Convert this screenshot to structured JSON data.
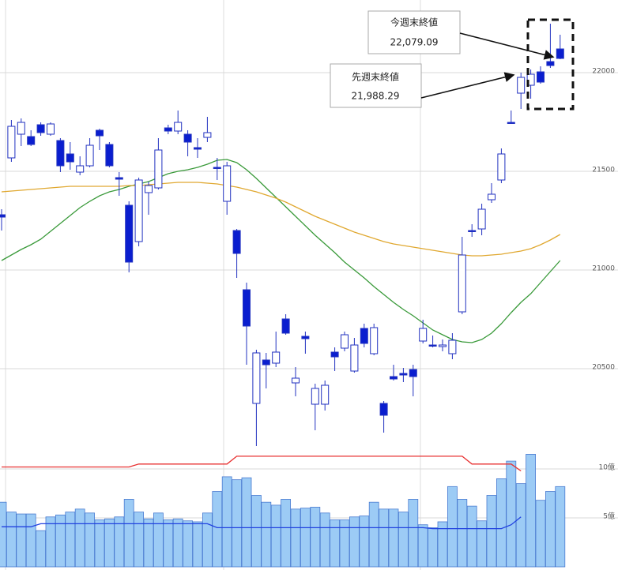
{
  "chart_data": {
    "type": "candlestick",
    "open": [
      21280,
      21568,
      21688,
      21676,
      21736,
      21688,
      21656,
      21588,
      21496,
      21528,
      21708,
      21636,
      21468,
      21328,
      21144,
      21392,
      21416,
      21720,
      21704,
      21688,
      21620,
      21672,
      21520,
      21348,
      21200,
      20900,
      20324,
      20544,
      20528,
      20752,
      20428,
      20664,
      20320,
      20320,
      20584,
      20604,
      20488,
      20704,
      20576,
      20324,
      20460,
      20476,
      20496,
      20640,
      20620,
      20612,
      20576,
      20788,
      21200,
      21208,
      21356,
      21456,
      21748,
      21896,
      21936,
      22004,
      22056,
      22120
    ],
    "high": [
      21308,
      21760,
      21768,
      21708,
      21748,
      21748,
      21668,
      21648,
      21576,
      21668,
      21716,
      21648,
      21496,
      21348,
      21468,
      21448,
      21668,
      21736,
      21808,
      21708,
      21668,
      21776,
      21568,
      21548,
      21208,
      20936,
      20596,
      20580,
      20688,
      20776,
      20508,
      20688,
      20424,
      20440,
      20608,
      20688,
      20656,
      20728,
      20728,
      20336,
      20520,
      20504,
      20520,
      20748,
      20668,
      20648,
      20680,
      21168,
      21232,
      21336,
      21440,
      21616,
      21808,
      22000,
      22016,
      22032,
      22248,
      22192
    ],
    "low": [
      21200,
      21548,
      21628,
      21628,
      21680,
      21680,
      21496,
      21508,
      21480,
      21520,
      21608,
      21520,
      21376,
      20988,
      21120,
      21280,
      21408,
      21688,
      21688,
      21576,
      21568,
      21648,
      21456,
      21280,
      20960,
      20520,
      20108,
      20400,
      20508,
      20672,
      20360,
      20576,
      20188,
      20288,
      20488,
      20588,
      20480,
      20608,
      20568,
      20176,
      20440,
      20432,
      20360,
      20628,
      20608,
      20588,
      20548,
      20776,
      21168,
      21176,
      21340,
      21440,
      21740,
      21816,
      21868,
      21944,
      22024,
      22068
    ],
    "close": [
      21268,
      21728,
      21748,
      21636,
      21696,
      21740,
      21528,
      21548,
      21528,
      21632,
      21680,
      21528,
      21460,
      21040,
      21456,
      21428,
      21608,
      21704,
      21748,
      21648,
      21612,
      21696,
      21516,
      21528,
      21084,
      20716,
      20580,
      20520,
      20584,
      20680,
      20452,
      20652,
      20400,
      20416,
      20560,
      20672,
      20620,
      20628,
      20708,
      20264,
      20448,
      20468,
      20460,
      20704,
      20616,
      20620,
      20644,
      21076,
      21196,
      21308,
      21384,
      21588,
      21744,
      21976,
      21992,
      21952,
      22036,
      22072
    ],
    "up_color": "#ffffff",
    "down_color": "#0a1ecf",
    "ylim": [
      20000,
      22368
    ],
    "yticks": [
      22000,
      21500,
      21000,
      20500
    ],
    "grid": true,
    "series": [
      {
        "color": "#3a9a3a",
        "values": [
          21048,
          21076,
          21104,
          21128,
          21156,
          21196,
          21236,
          21276,
          21316,
          21348,
          21376,
          21396,
          21408,
          21424,
          21436,
          21448,
          21468,
          21488,
          21500,
          21508,
          21520,
          21536,
          21556,
          21560,
          21544,
          21508,
          21464,
          21416,
          21368,
          21320,
          21272,
          21224,
          21176,
          21132,
          21088,
          21040,
          21000,
          20960,
          20916,
          20876,
          20836,
          20800,
          20768,
          20732,
          20696,
          20672,
          20648,
          20636,
          20632,
          20648,
          20680,
          20728,
          20784,
          20836,
          20880,
          20936,
          20992,
          21048
        ]
      },
      {
        "color": "#e0a830",
        "values": [
          21396,
          21400,
          21404,
          21408,
          21412,
          21416,
          21420,
          21424,
          21424,
          21424,
          21424,
          21424,
          21424,
          21428,
          21428,
          21432,
          21436,
          21440,
          21444,
          21444,
          21444,
          21440,
          21436,
          21428,
          21420,
          21408,
          21396,
          21380,
          21364,
          21344,
          21320,
          21296,
          21272,
          21252,
          21232,
          21212,
          21192,
          21176,
          21160,
          21144,
          21132,
          21124,
          21116,
          21108,
          21100,
          21092,
          21084,
          21076,
          21072,
          21072,
          21076,
          21080,
          21088,
          21096,
          21108,
          21128,
          21152,
          21180
        ]
      }
    ],
    "volume": {
      "color": "#9ccbf5",
      "values": [
        6.6,
        5.6,
        5.4,
        5.4,
        3.7,
        5.1,
        5.3,
        5.6,
        5.9,
        5.5,
        4.8,
        4.9,
        5.1,
        6.9,
        5.6,
        4.9,
        5.5,
        4.8,
        4.9,
        4.7,
        4.6,
        5.5,
        7.7,
        9.2,
        8.9,
        9.1,
        7.3,
        6.6,
        6.3,
        6.9,
        5.9,
        6.0,
        6.1,
        5.5,
        4.8,
        4.8,
        5.1,
        5.2,
        6.6,
        5.9,
        5.9,
        5.6,
        6.9,
        4.3,
        4.0,
        4.6,
        8.2,
        6.9,
        6.2,
        4.7,
        7.3,
        9.0,
        10.8,
        8.5,
        11.5,
        6.8,
        7.7,
        8.2
      ],
      "ylim": [
        0,
        12
      ],
      "yticks": [
        {
          "value": 10,
          "label": "10億"
        },
        {
          "value": 5,
          "label": "5億"
        }
      ],
      "series": [
        {
          "color": "#2040e0",
          "values": [
            4.1,
            4.1,
            4.1,
            4.1,
            4.4,
            4.4,
            4.4,
            4.4,
            4.4,
            4.4,
            4.4,
            4.4,
            4.4,
            4.4,
            4.4,
            4.4,
            4.4,
            4.4,
            4.4,
            4.4,
            4.4,
            4.4,
            4.0,
            4.0,
            4.0,
            4.0,
            4.0,
            4.0,
            4.0,
            4.0,
            4.0,
            4.0,
            4.0,
            4.0,
            4.0,
            4.0,
            4.0,
            4.0,
            4.0,
            4.0,
            4.0,
            4.0,
            4.0,
            4.0,
            3.9,
            3.9,
            3.9,
            3.9,
            3.9,
            3.9,
            3.9,
            3.9,
            4.3,
            5.1,
            null,
            null,
            null,
            null
          ]
        },
        {
          "color": "#e83030",
          "values": [
            10.2,
            10.2,
            10.2,
            10.2,
            10.2,
            10.2,
            10.2,
            10.2,
            10.2,
            10.2,
            10.2,
            10.2,
            10.2,
            10.2,
            10.5,
            10.5,
            10.5,
            10.5,
            10.5,
            10.5,
            10.5,
            10.5,
            10.5,
            10.5,
            11.3,
            11.3,
            11.3,
            11.3,
            11.3,
            11.3,
            11.3,
            11.3,
            11.3,
            11.3,
            11.3,
            11.3,
            11.3,
            11.3,
            11.3,
            11.3,
            11.3,
            11.3,
            11.3,
            11.3,
            11.3,
            11.3,
            11.3,
            11.3,
            10.5,
            10.5,
            10.5,
            10.5,
            10.5,
            9.8,
            null,
            null,
            null,
            null
          ]
        }
      ]
    },
    "annotations": [
      {
        "text": "今週末終値",
        "value": 22079.09,
        "value_label": "22,079.09"
      },
      {
        "text": "先週末終値",
        "value": 21988.29,
        "value_label": "21,988.29"
      }
    ]
  }
}
